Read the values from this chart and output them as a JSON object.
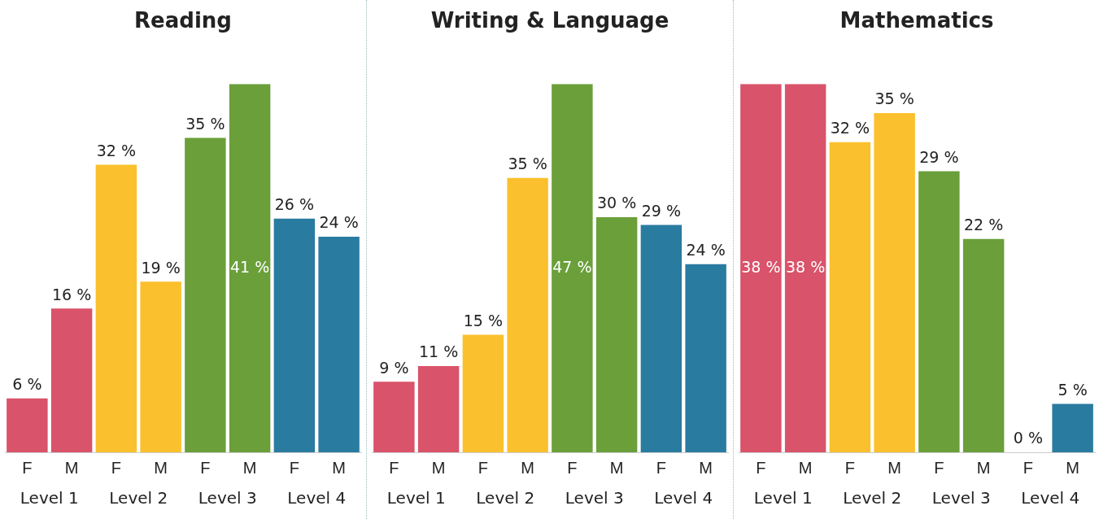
{
  "chart_data": [
    {
      "type": "bar",
      "title": "Reading",
      "categories": [
        "F",
        "M",
        "F",
        "M",
        "F",
        "M",
        "F",
        "M"
      ],
      "values": [
        6,
        16,
        32,
        19,
        35,
        41,
        26,
        24
      ],
      "value_labels": [
        "6 %",
        "16 %",
        "32 %",
        "19 %",
        "35 %",
        "41 %",
        "26 %",
        "24 %"
      ],
      "colors": [
        "#d9536a",
        "#d9536a",
        "#fbc02d",
        "#fbc02d",
        "#6a9f3a",
        "#6a9f3a",
        "#2a7ba0",
        "#2a7ba0"
      ],
      "annotations": [
        "Level 1",
        "Level 2",
        "Level 3",
        "Level 4"
      ],
      "grid": false,
      "legend": false
    },
    {
      "type": "bar",
      "title": "Writing & Language",
      "categories": [
        "F",
        "M",
        "F",
        "M",
        "F",
        "M",
        "F",
        "M"
      ],
      "values": [
        9,
        11,
        15,
        35,
        47,
        30,
        29,
        24
      ],
      "value_labels": [
        "9 %",
        "11 %",
        "15 %",
        "35 %",
        "47 %",
        "30 %",
        "29 %",
        "24 %"
      ],
      "colors": [
        "#d9536a",
        "#d9536a",
        "#fbc02d",
        "#fbc02d",
        "#6a9f3a",
        "#6a9f3a",
        "#2a7ba0",
        "#2a7ba0"
      ],
      "annotations": [
        "Level 1",
        "Level 2",
        "Level 3",
        "Level 4"
      ],
      "grid": false,
      "legend": false
    },
    {
      "type": "bar",
      "title": "Mathematics",
      "categories": [
        "F",
        "M",
        "F",
        "M",
        "F",
        "M",
        "F",
        "M"
      ],
      "values": [
        38,
        38,
        32,
        35,
        29,
        22,
        0,
        5
      ],
      "value_labels": [
        "38 %",
        "38 %",
        "32 %",
        "35 %",
        "29 %",
        "22 %",
        "0 %",
        "5 %"
      ],
      "colors": [
        "#d9536a",
        "#d9536a",
        "#fbc02d",
        "#fbc02d",
        "#6a9f3a",
        "#6a9f3a",
        "#2a7ba0",
        "#2a7ba0"
      ],
      "annotations": [
        "Level 1",
        "Level 2",
        "Level 3",
        "Level 4"
      ],
      "grid": false,
      "legend": false
    }
  ]
}
